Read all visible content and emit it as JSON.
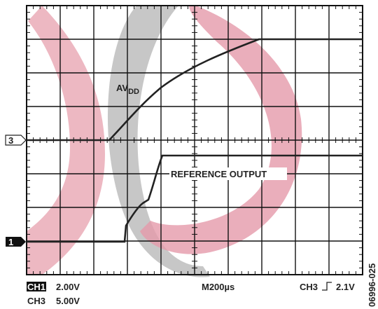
{
  "traces": {
    "avdd": {
      "main": "AV",
      "sub": "DD"
    },
    "reference": "REFERENCE OUTPUT"
  },
  "markers": {
    "ch3": "3",
    "ch1": "1"
  },
  "footer": {
    "ch1": "CH1",
    "ch1_scale": "2.00V",
    "ch3": "CH3",
    "ch3_scale": "5.00V",
    "timebase": "M200µs",
    "trigger_channel": "CH3",
    "trigger_level": "2.1V"
  },
  "figure_id": "06996-025"
}
